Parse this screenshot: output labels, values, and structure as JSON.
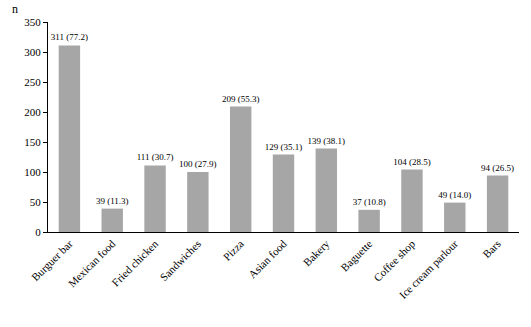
{
  "chart_data": {
    "type": "bar",
    "y_label": "n",
    "categories": [
      "Burguer bar",
      "Mexican food",
      "Fried chicken",
      "Sandwiches",
      "Pizza",
      "Asian food",
      "Bakery",
      "Baguette",
      "Coffee shop",
      "Ice cream parlour",
      "Bars"
    ],
    "values": [
      311,
      39,
      111,
      100,
      209,
      129,
      139,
      37,
      104,
      49,
      94
    ],
    "value_labels": [
      "311 (77.2)",
      "39 (11.3)",
      "111 (30.7)",
      "100 (27.9)",
      "209 (55.3)",
      "129 (35.1)",
      "139 (38.1)",
      "37 (10.8)",
      "104 (28.5)",
      "49 (14.0)",
      "94 (26.5)"
    ],
    "data_labels": true,
    "color": "#a6a6a6",
    "ylim": [
      0,
      350
    ],
    "yticks": [
      0,
      50,
      100,
      150,
      200,
      250,
      300,
      350
    ],
    "grid": false
  }
}
